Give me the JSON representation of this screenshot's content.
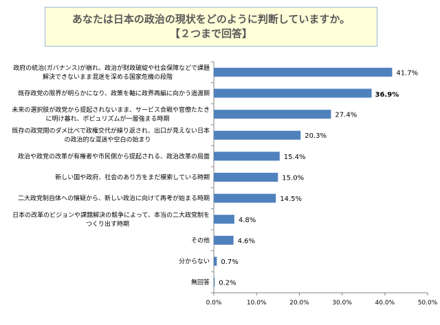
{
  "chart_data": {
    "type": "bar",
    "orientation": "horizontal",
    "title": "あなたは日本の政治の現状をどのように判断していますか。",
    "subtitle": "【２つまで回答】",
    "categories": [
      [
        "政府の統治(ガバナンス)が崩れ、政治が財政破綻や社会保障などで課題",
        "解決できないまま混迷を深める国家危機の段階"
      ],
      [
        "既存政党の限界が明らかになり、政策を軸に政界再編に向かう過渡期"
      ],
      [
        "未来の選択肢が政党から提起されないまま、サービス合戦や官僚たたき",
        "に明け暮れ、ポピュリズムが一層強まる時期"
      ],
      [
        "既存の政党間のダメ比べで政権交代が繰り返され、出口が見えない日本",
        "の政治的な混迷や空白の始まり"
      ],
      [
        "政治や政党の改革が有権者や市民側から提起される、政治改革の局面"
      ],
      [
        "新しい国や政府、社会のあり方をまだ模索している時期"
      ],
      [
        "二大政党制自体への懐疑から、新しい政治に向けて再考が始まる時期"
      ],
      [
        "日本の改革のビジョンや課題解決の競争によって、本当の二大政党制を",
        "つくり出す時期"
      ],
      [
        "その他"
      ],
      [
        "分からない"
      ],
      [
        "無回答"
      ]
    ],
    "values": [
      41.7,
      36.9,
      27.4,
      20.3,
      15.4,
      15.0,
      14.5,
      4.8,
      4.6,
      0.7,
      0.2
    ],
    "value_labels": [
      "41.7%",
      "36.9%",
      "27.4%",
      "20.3%",
      "15.4%",
      "15.0%",
      "14.5%",
      "4.8%",
      "4.6%",
      "0.7%",
      "0.2%"
    ],
    "highlight_index": 1,
    "xlim": [
      0,
      50
    ],
    "xticks": [
      "0.0%",
      "10.0%",
      "20.0%",
      "30.0%",
      "40.0%",
      "50.0%"
    ],
    "bar_color": "#4f81bd",
    "grid": false
  }
}
